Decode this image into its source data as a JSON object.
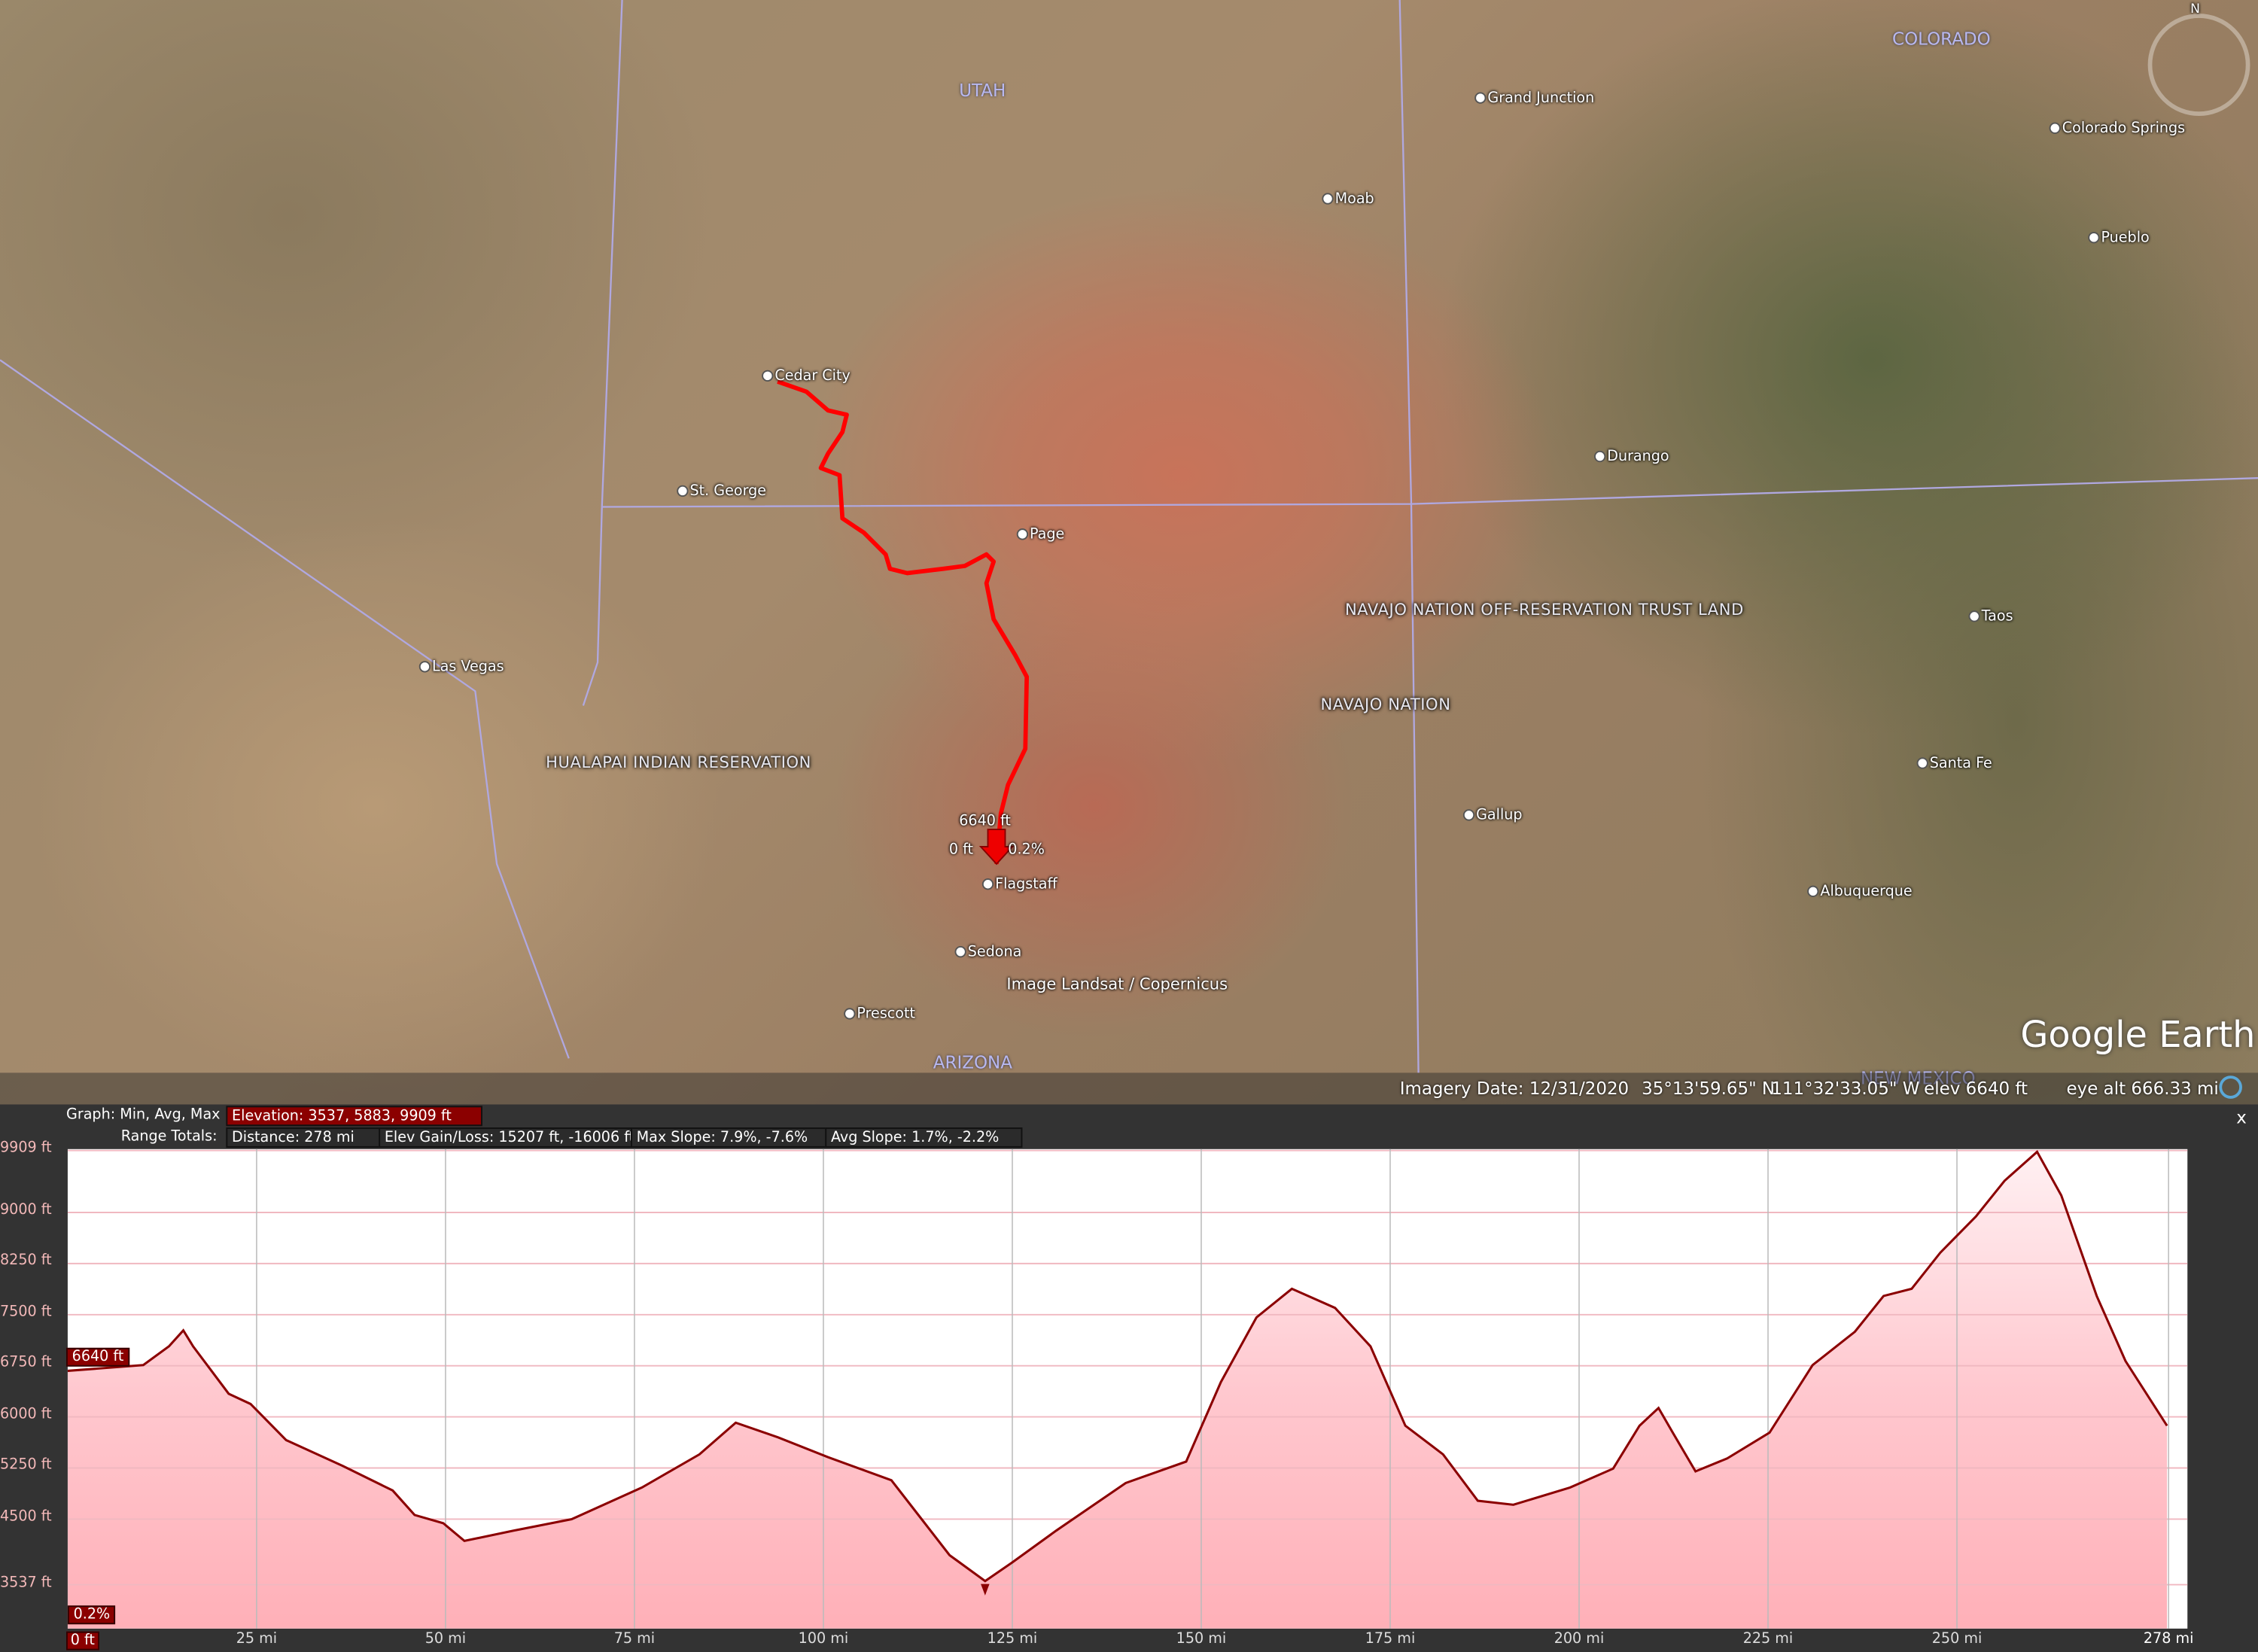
{
  "map": {
    "states": [
      "UTAH",
      "COLORADO",
      "ARIZONA",
      "NEW MEXICO"
    ],
    "places": [
      "Grand Junction",
      "Moab",
      "Colorado Springs",
      "Pueblo",
      "Cedar City",
      "St. George",
      "Page",
      "Durango",
      "Taos",
      "Las Vegas",
      "Santa Fe",
      "Gallup",
      "Albuquerque",
      "Flagstaff",
      "Sedona",
      "Prescott"
    ],
    "regions": [
      "NAVAJO NATION OFF-RESERVATION TRUST LAND",
      "NAVAJO NATION",
      "HUALAPAI INDIAN RESERVATION"
    ],
    "attribution": "Image Landsat / Copernicus",
    "logo": "Google Earth",
    "compass_label": "N",
    "cursor": {
      "elevation": "6640 ft",
      "distance": "0 ft",
      "slope": "0.2%"
    },
    "route_color": "#ff0000"
  },
  "status": {
    "imagery_date": "Imagery Date: 12/31/2020",
    "lat": "35°13'59.65\" N",
    "lon": "111°32'33.05\" W",
    "elev": "elev  6640 ft",
    "eye_alt": "eye alt 666.33 mi"
  },
  "graph": {
    "graph_label": "Graph: Min, Avg, Max",
    "elevation_box": "Elevation: 3537, 5883, 9909 ft",
    "range_label": "Range Totals:",
    "distance_box": "Distance: 278 mi",
    "gain_box": "Elev Gain/Loss: 15207 ft, -16006 ft",
    "max_slope_box": "Max Slope: 7.9%, -7.6%",
    "avg_slope_box": "Avg Slope: 1.7%, -2.2%",
    "close": "x",
    "current_elev_tag": "6640 ft",
    "current_slope_tag": "0.2%",
    "current_dist_tag": "0 ft"
  },
  "chart_data": {
    "type": "area",
    "xlabel": "",
    "ylabel": "",
    "x_unit": "mi",
    "y_unit": "ft",
    "xlim": [
      0,
      280.5
    ],
    "ylim": [
      2893,
      9930
    ],
    "x_ticks": [
      "25 mi",
      "50 mi",
      "75 mi",
      "100 mi",
      "125 mi",
      "150 mi",
      "175 mi",
      "200 mi",
      "225 mi",
      "250 mi",
      "278 mi"
    ],
    "x_tick_values": [
      25,
      50,
      75,
      100,
      125,
      150,
      175,
      200,
      225,
      250,
      278
    ],
    "y_ticks": [
      "9909 ft",
      "9000 ft",
      "8250 ft",
      "7500 ft",
      "6750 ft",
      "6000 ft",
      "5250 ft",
      "4500 ft",
      "3537 ft"
    ],
    "y_tick_values": [
      9909,
      9000,
      8250,
      7500,
      6750,
      6000,
      5250,
      4500,
      3537
    ],
    "grid": true,
    "line_color": "#8b0000",
    "fill_color": "#ffb0b8",
    "series": [
      {
        "x": [
          0,
          10,
          13.4,
          15.3,
          16.6,
          21.3,
          24.2,
          28.9,
          36.4,
          43,
          45.9,
          49.7,
          52.5,
          59,
          66.7,
          76,
          83.6,
          88.4,
          94,
          100.6,
          109,
          113,
          116.7,
          121.4,
          125,
          130.8,
          140,
          148,
          152.6,
          157.3,
          162,
          167.7,
          172.4,
          177,
          182,
          186.6,
          191.3,
          198.8,
          204.5,
          208,
          210.5,
          212.4,
          215.4,
          219.6,
          225.2,
          230.9,
          236.5,
          240.3,
          244,
          247.8,
          252.5,
          256.3,
          260.6,
          263.8,
          268.5,
          272.3,
          277.8
        ],
        "y": [
          6675,
          6760,
          7035,
          7270,
          7035,
          6340,
          6190,
          5660,
          5280,
          4920,
          4560,
          4440,
          4180,
          4330,
          4500,
          4965,
          5450,
          5915,
          5700,
          5410,
          5070,
          4500,
          3970,
          3590,
          3865,
          4330,
          5030,
          5345,
          6510,
          7460,
          7880,
          7600,
          7035,
          5870,
          5450,
          4770,
          4710,
          4965,
          5240,
          5870,
          6130,
          5770,
          5200,
          5390,
          5770,
          6760,
          7250,
          7775,
          7880,
          8410,
          8940,
          9465,
          9890,
          9250,
          7775,
          6820,
          5870
        ]
      }
    ]
  }
}
